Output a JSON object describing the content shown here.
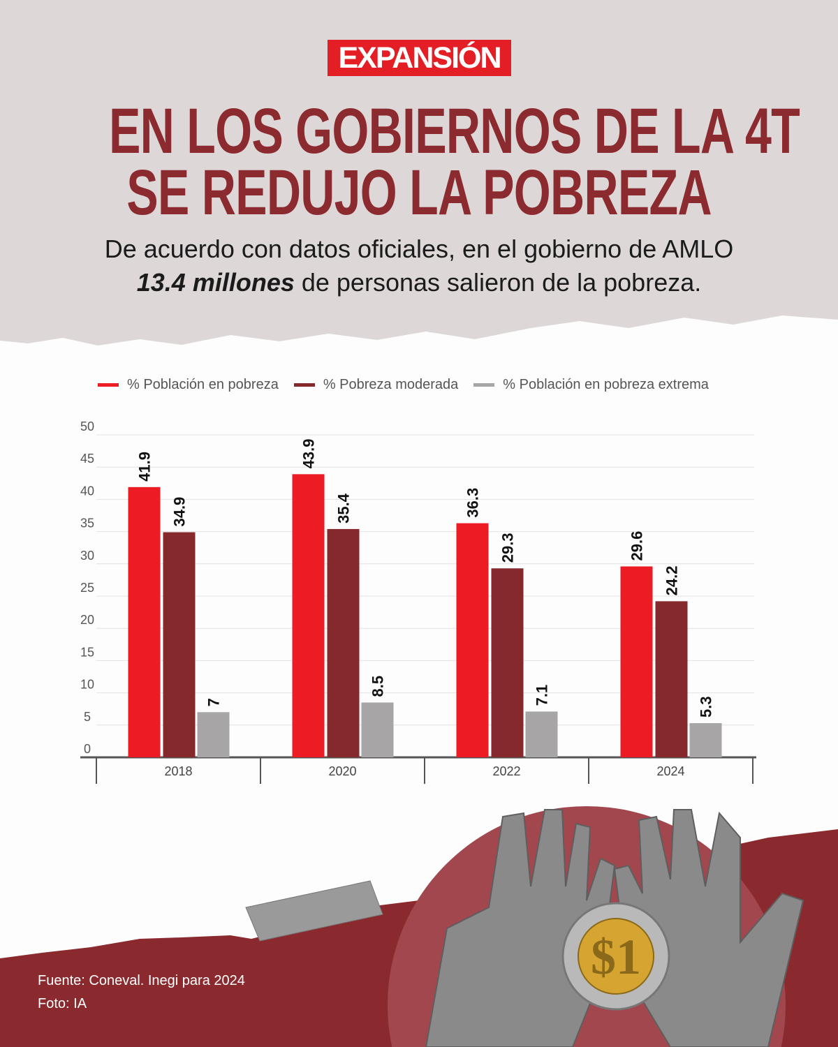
{
  "logo": "EXPANSIÓN",
  "title_line1": "EN LOS GOBIERNOS DE LA 4T",
  "title_line2": "SE REDUJO LA POBREZA",
  "subtitle_line1": "De acuerdo con datos oficiales, en el gobierno de AMLO",
  "subtitle_bold": "13.4 millones",
  "subtitle_rest": " de personas salieron de la pobreza.",
  "source": "Fuente: Coneval. Inegi para 2024",
  "photo": "Foto: IA",
  "colors": {
    "title": "#8b2a2f",
    "brand": "#e31e24",
    "background_top": "#ddd7d7",
    "footer": "#8b2a2e"
  },
  "chart_data": {
    "type": "bar",
    "categories": [
      "2018",
      "2020",
      "2022",
      "2024"
    ],
    "series": [
      {
        "name": "% Población en pobreza",
        "color": "#ed1c24",
        "values": [
          41.9,
          43.9,
          36.3,
          29.6
        ]
      },
      {
        "name": "% Pobreza moderada",
        "color": "#86292d",
        "values": [
          34.9,
          35.4,
          29.3,
          24.2
        ]
      },
      {
        "name": "% Población en pobreza extrema",
        "color": "#a7a5a6",
        "values": [
          7,
          8.5,
          7.1,
          5.3
        ]
      }
    ],
    "yticks": [
      "0",
      "5",
      "10",
      "15",
      "20",
      "25",
      "30",
      "35",
      "40",
      "45",
      "50"
    ],
    "ylim": [
      0,
      50
    ],
    "grid": true,
    "legend": "top"
  }
}
